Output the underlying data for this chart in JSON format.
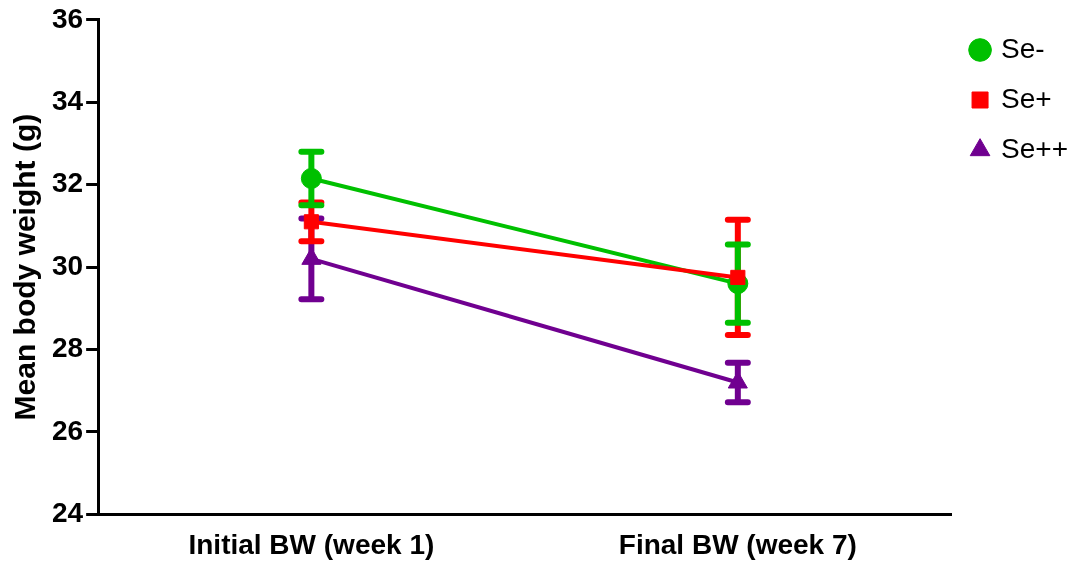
{
  "chart_data": {
    "type": "line",
    "ylabel": "Mean body weight (g)",
    "categories": [
      "Initial BW (week 1)",
      "Final BW (week 7)"
    ],
    "ylim": [
      24,
      36
    ],
    "yticks": [
      24,
      26,
      28,
      30,
      32,
      34,
      36
    ],
    "grid": false,
    "legend": "right",
    "line_style": "solid",
    "series": [
      {
        "name": "Se-",
        "color": "#00c000",
        "marker": "circle",
        "values": [
          32.15,
          29.6
        ],
        "errors": [
          0.65,
          0.95
        ]
      },
      {
        "name": "Se+",
        "color": "#ff0000",
        "marker": "square",
        "values": [
          31.1,
          29.75
        ],
        "errors": [
          0.47,
          1.4
        ]
      },
      {
        "name": "Se++",
        "color": "#700090",
        "marker": "triangle",
        "values": [
          30.2,
          27.2
        ],
        "errors": [
          0.98,
          0.48
        ]
      }
    ]
  }
}
